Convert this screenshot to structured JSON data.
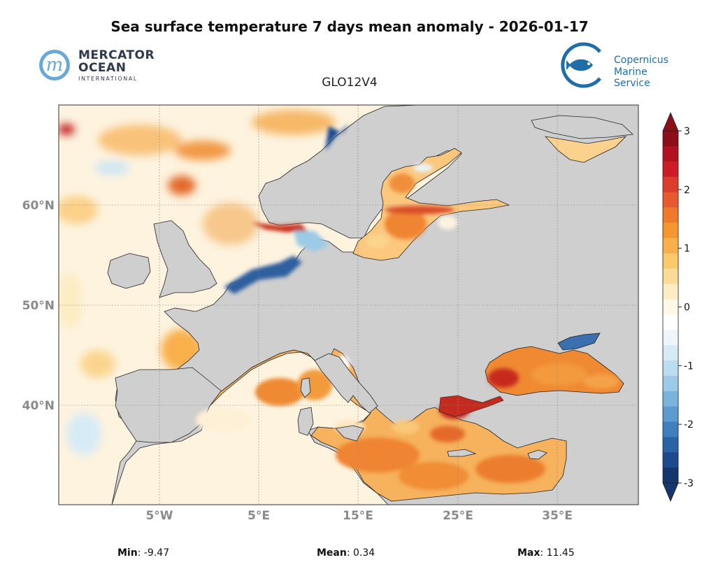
{
  "title": "Sea surface temperature 7 days mean anomaly - 2026-01-17",
  "product": "GLO12V4",
  "logos": {
    "mercator": {
      "line1": "MERCATOR",
      "line2": "OCEAN",
      "line3": "INTERNATIONAL",
      "mark": "m"
    },
    "copernicus": {
      "line1": "Copernicus",
      "line2": "Marine Service",
      "icon": "fish-in-circle-icon"
    }
  },
  "axes": {
    "lat_ticks": [
      "60°N",
      "50°N",
      "40°N"
    ],
    "lon_ticks": [
      "5°W",
      "5°E",
      "15°E",
      "25°E",
      "35°E"
    ]
  },
  "colorbar": {
    "ticks": [
      "3",
      "2",
      "1",
      "0",
      "-1",
      "-2",
      "-3"
    ],
    "range": [
      -3,
      3
    ],
    "colors": [
      "#8b0e1a",
      "#b2121f",
      "#cc1d24",
      "#dc3c2c",
      "#e65a2e",
      "#ef7a2b",
      "#f6962f",
      "#f9b04b",
      "#fbc86a",
      "#fbdc97",
      "#fdedc3",
      "#fff8e6",
      "#ffffff",
      "#eef6fb",
      "#d6ebf6",
      "#bcdcef",
      "#9ccae7",
      "#7ab3dc",
      "#5b9bcf",
      "#3f7fbd",
      "#2a63a5",
      "#1d4a8d",
      "#15356f"
    ]
  },
  "stats": {
    "min_label": "Min",
    "min_value": "-9.47",
    "mean_label": "Mean",
    "mean_value": "0.34",
    "max_label": "Max",
    "max_value": "11.45"
  },
  "colors": {
    "land": "#cfcfcf",
    "ocean_base": "#fdf3df",
    "warm": "#f18a2e",
    "hot": "#c21d1d",
    "cold": "#1d4a8d",
    "cool": "#cfe6f4"
  }
}
